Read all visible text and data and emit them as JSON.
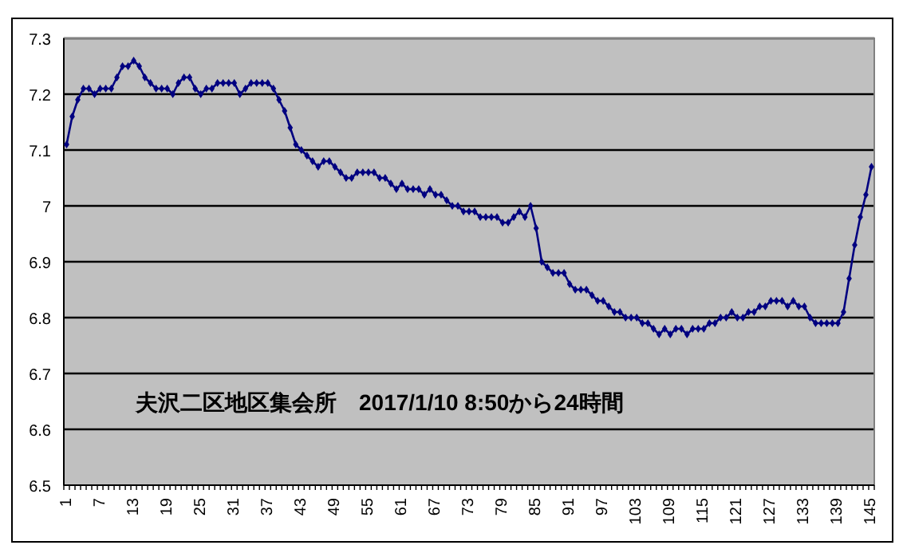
{
  "chart_data": {
    "type": "line",
    "categories": [
      "1",
      null,
      null,
      null,
      null,
      null,
      "7",
      null,
      null,
      null,
      null,
      null,
      "13",
      null,
      null,
      null,
      null,
      null,
      "19",
      null,
      null,
      null,
      null,
      null,
      "25",
      null,
      null,
      null,
      null,
      null,
      "31",
      null,
      null,
      null,
      null,
      null,
      "37",
      null,
      null,
      null,
      null,
      null,
      "43",
      null,
      null,
      null,
      null,
      null,
      "49",
      null,
      null,
      null,
      null,
      null,
      "55",
      null,
      null,
      null,
      null,
      null,
      "61",
      null,
      null,
      null,
      null,
      null,
      "67",
      null,
      null,
      null,
      null,
      null,
      "73",
      null,
      null,
      null,
      null,
      null,
      "79",
      null,
      null,
      null,
      null,
      null,
      "85",
      null,
      null,
      null,
      null,
      null,
      "91",
      null,
      null,
      null,
      null,
      null,
      "97",
      null,
      null,
      null,
      null,
      null,
      "103",
      null,
      null,
      null,
      null,
      null,
      "109",
      null,
      null,
      null,
      null,
      null,
      "115",
      null,
      null,
      null,
      null,
      null,
      "121",
      null,
      null,
      null,
      null,
      null,
      "127",
      null,
      null,
      null,
      null,
      null,
      "133",
      null,
      null,
      null,
      null,
      null,
      "139",
      null,
      null,
      null,
      null,
      null,
      "145"
    ],
    "series": [
      {
        "color": "#000080",
        "values": [
          7.11,
          7.16,
          7.19,
          7.21,
          7.21,
          7.2,
          7.21,
          7.21,
          7.21,
          7.23,
          7.25,
          7.25,
          7.26,
          7.25,
          7.23,
          7.22,
          7.21,
          7.21,
          7.21,
          7.2,
          7.22,
          7.23,
          7.23,
          7.21,
          7.2,
          7.21,
          7.21,
          7.22,
          7.22,
          7.22,
          7.22,
          7.2,
          7.21,
          7.22,
          7.22,
          7.22,
          7.22,
          7.21,
          7.19,
          7.17,
          7.14,
          7.11,
          7.1,
          7.09,
          7.08,
          7.07,
          7.08,
          7.08,
          7.07,
          7.06,
          7.05,
          7.05,
          7.06,
          7.06,
          7.06,
          7.06,
          7.05,
          7.05,
          7.04,
          7.03,
          7.04,
          7.03,
          7.03,
          7.03,
          7.02,
          7.03,
          7.02,
          7.02,
          7.01,
          7.0,
          7.0,
          6.99,
          6.99,
          6.99,
          6.98,
          6.98,
          6.98,
          6.98,
          6.97,
          6.97,
          6.98,
          6.99,
          6.98,
          7.0,
          6.96,
          6.9,
          6.89,
          6.88,
          6.88,
          6.88,
          6.86,
          6.85,
          6.85,
          6.85,
          6.84,
          6.83,
          6.83,
          6.82,
          6.81,
          6.81,
          6.8,
          6.8,
          6.8,
          6.79,
          6.79,
          6.78,
          6.77,
          6.78,
          6.77,
          6.78,
          6.78,
          6.77,
          6.78,
          6.78,
          6.78,
          6.79,
          6.79,
          6.8,
          6.8,
          6.81,
          6.8,
          6.8,
          6.81,
          6.81,
          6.82,
          6.82,
          6.83,
          6.83,
          6.83,
          6.82,
          6.83,
          6.82,
          6.82,
          6.8,
          6.79,
          6.79,
          6.79,
          6.79,
          6.79,
          6.81,
          6.87,
          6.93,
          6.98,
          7.02,
          7.07
        ]
      }
    ],
    "ylim": [
      6.5,
      7.3
    ],
    "yticks": [
      6.5,
      6.6,
      6.7,
      6.8,
      6.9,
      7,
      7.1,
      7.2,
      7.3
    ],
    "grid": "y",
    "marker": "diamond",
    "line_style": "solid",
    "annotations": [
      "夫沢二区地区集会所　2017/1/10 8:50から24時間"
    ]
  }
}
